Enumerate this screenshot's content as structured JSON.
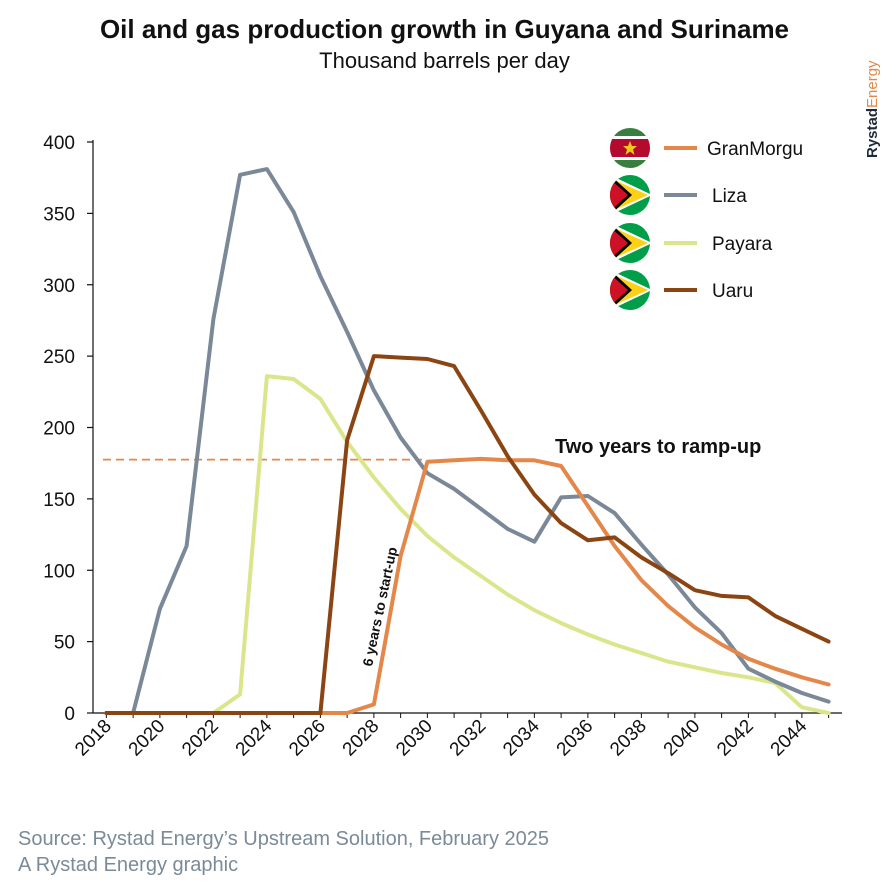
{
  "chart_data": {
    "type": "line",
    "title": "Oil and gas production growth in Guyana and Suriname",
    "subtitle": "Thousand barrels per day",
    "ylim": [
      0,
      400
    ],
    "yticks": [
      0,
      50,
      100,
      150,
      200,
      250,
      300,
      350,
      400
    ],
    "xlim": [
      2018,
      2045
    ],
    "xticks": [
      2018,
      2020,
      2022,
      2024,
      2026,
      2028,
      2030,
      2032,
      2034,
      2036,
      2038,
      2040,
      2042,
      2044
    ],
    "legend_position": "top-right",
    "series": [
      {
        "name": "GranMorgu",
        "color": "#e3884a",
        "flag": "suriname-flag",
        "x": [
          2018,
          2019,
          2020,
          2021,
          2022,
          2023,
          2024,
          2025,
          2026,
          2027,
          2028,
          2029,
          2030,
          2031,
          2032,
          2033,
          2034,
          2035,
          2036,
          2037,
          2038,
          2039,
          2040,
          2041,
          2042,
          2043,
          2044,
          2045
        ],
        "y": [
          0,
          0,
          0,
          0,
          0,
          0,
          0,
          0,
          0,
          0,
          6,
          110,
          176,
          177,
          178,
          177,
          177,
          173,
          145,
          117,
          93,
          75,
          60,
          48,
          38,
          31,
          25,
          20
        ]
      },
      {
        "name": "Liza",
        "color": "#7a8898",
        "flag": "guyana-flag",
        "x": [
          2018,
          2019,
          2020,
          2021,
          2022,
          2023,
          2024,
          2025,
          2026,
          2027,
          2028,
          2029,
          2030,
          2031,
          2032,
          2033,
          2034,
          2035,
          2036,
          2037,
          2038,
          2039,
          2040,
          2041,
          2042,
          2043,
          2044,
          2045
        ],
        "y": [
          0,
          0,
          73,
          117,
          276,
          377,
          381,
          351,
          306,
          267,
          226,
          193,
          168,
          157,
          143,
          129,
          120,
          151,
          152,
          140,
          118,
          97,
          74,
          56,
          31,
          22,
          14,
          8
        ]
      },
      {
        "name": "Payara",
        "color": "#dbe68c",
        "flag": "guyana-flag",
        "x": [
          2018,
          2019,
          2020,
          2021,
          2022,
          2023,
          2024,
          2025,
          2026,
          2027,
          2028,
          2029,
          2030,
          2031,
          2032,
          2033,
          2034,
          2035,
          2036,
          2037,
          2038,
          2039,
          2040,
          2041,
          2042,
          2043,
          2044,
          2045
        ],
        "y": [
          0,
          0,
          0,
          0,
          0,
          13,
          236,
          234,
          220,
          190,
          165,
          143,
          124,
          109,
          96,
          83,
          72,
          63,
          55,
          48,
          42,
          36,
          32,
          28,
          25,
          21,
          4,
          0
        ]
      },
      {
        "name": "Uaru",
        "color": "#8b4513",
        "flag": "guyana-flag",
        "x": [
          2018,
          2019,
          2020,
          2021,
          2022,
          2023,
          2024,
          2025,
          2026,
          2027,
          2028,
          2029,
          2030,
          2031,
          2032,
          2033,
          2034,
          2035,
          2036,
          2037,
          2038,
          2039,
          2040,
          2041,
          2042,
          2043,
          2044,
          2045
        ],
        "y": [
          0,
          0,
          0,
          0,
          0,
          0,
          0,
          0,
          0,
          191,
          250,
          249,
          248,
          243,
          212,
          180,
          153,
          133,
          121,
          123,
          109,
          98,
          86,
          82,
          81,
          68,
          59,
          50
        ]
      }
    ],
    "reference_line": {
      "y": 177.5,
      "x_end": 2029.8,
      "color": "#e3884a"
    },
    "annotations": [
      {
        "text": "Two years to ramp-up"
      },
      {
        "text": "6 years to start-up"
      }
    ]
  },
  "footer": {
    "source": "Source: Rystad Energy’s Upstream Solution, February 2025",
    "credit": "A Rystad Energy graphic"
  },
  "brand": {
    "part1": "Rystad",
    "part2": "Energy"
  },
  "colors": {
    "brand_dark": "#1f2a3a",
    "brand_accent": "#e3884a",
    "source_text": "#7b8a99"
  }
}
